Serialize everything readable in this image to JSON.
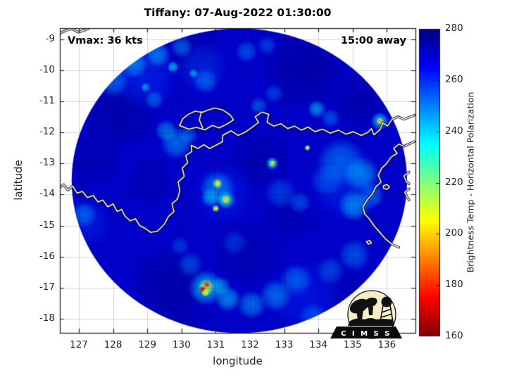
{
  "title": "Tiffany: 07-Aug-2022 01:30:00",
  "overlays": {
    "vmax_label": "Vmax: 36 kts",
    "timing_label": "15:00 away"
  },
  "axes": {
    "xlabel": "longitude",
    "ylabel": "latitude",
    "xticks": [
      127,
      128,
      129,
      130,
      131,
      132,
      133,
      134,
      135,
      136
    ],
    "yticks": [
      -9,
      -10,
      -11,
      -12,
      -13,
      -14,
      -15,
      -16,
      -17,
      -18
    ],
    "xlim": [
      126.44,
      136.83
    ],
    "ylim": [
      -18.45,
      -8.65
    ]
  },
  "colorbar": {
    "label": "Brightness Temp - Horizontal Polarization",
    "ticks": [
      280,
      260,
      240,
      220,
      200,
      180,
      160
    ],
    "min": 160,
    "max": 280,
    "colormap": "jet (280 K dark blue at top, 160 K dark red at bottom)"
  },
  "logo": {
    "text": "C I M S S"
  },
  "chart_data": {
    "type": "heatmap",
    "storm_name": "Tiffany",
    "timestamp": "07-Aug-2022 01:30:00",
    "vmax_kts": 36,
    "time_to_closest_approach": "15:00 away",
    "field": "Brightness Temp - Horizontal Polarization",
    "units": "K",
    "background_temp_K": 271.5,
    "swath_disc": {
      "center_lon": 131.69,
      "center_lat": -13.56,
      "radius_deg": 4.9
    },
    "hotspots": [
      {
        "lon": 131.3,
        "lat": -14.17,
        "temp_K": 196
      },
      {
        "lon": 131.05,
        "lat": -13.65,
        "temp_K": 204
      },
      {
        "lon": 131.0,
        "lat": -14.45,
        "temp_K": 206
      },
      {
        "lon": 132.65,
        "lat": -13.0,
        "temp_K": 200
      },
      {
        "lon": 130.74,
        "lat": -16.9,
        "temp_K": 178
      },
      {
        "lon": 130.62,
        "lat": -17.06,
        "temp_K": 170
      },
      {
        "lon": 135.8,
        "lat": -11.64,
        "temp_K": 192
      },
      {
        "lon": 133.68,
        "lat": -12.5,
        "temp_K": 208
      }
    ],
    "patches": [
      [
        133.6,
        -10.0,
        1.3,
        278,
        0.55
      ],
      [
        135.2,
        -11.0,
        0.9,
        277.5,
        0.5
      ],
      [
        128.2,
        -11.4,
        1.2,
        277.5,
        0.5
      ],
      [
        127.4,
        -12.9,
        0.9,
        277,
        0.45
      ],
      [
        129.1,
        -13.6,
        0.8,
        276.5,
        0.45
      ],
      [
        132.3,
        -12.9,
        1.0,
        277,
        0.5
      ],
      [
        129.6,
        -16.9,
        1.2,
        277.5,
        0.55
      ],
      [
        131.9,
        -15.9,
        1.1,
        276.5,
        0.45
      ],
      [
        134.7,
        -17.1,
        0.9,
        276,
        0.4
      ],
      [
        130.3,
        -9.4,
        0.9,
        277,
        0.45
      ],
      [
        126.9,
        -15.9,
        0.9,
        276.5,
        0.45
      ],
      [
        133.1,
        -14.7,
        0.9,
        276,
        0.4
      ],
      [
        136.0,
        -10.3,
        0.8,
        277,
        0.4
      ],
      [
        130.0,
        -18.0,
        1.0,
        276,
        0.4
      ],
      [
        128.9,
        -10.1,
        1.1,
        258,
        0.45
      ],
      [
        130.6,
        -9.9,
        0.8,
        256,
        0.4
      ],
      [
        134.8,
        -13.6,
        1.2,
        258,
        0.45
      ],
      [
        133.6,
        -17.3,
        1.2,
        260,
        0.4
      ],
      [
        127.2,
        -14.9,
        0.8,
        258,
        0.4
      ],
      [
        131.2,
        -14.0,
        1.0,
        259,
        0.35
      ],
      [
        128.0,
        -10.35,
        0.5,
        248,
        0.6
      ],
      [
        128.6,
        -9.8,
        0.45,
        245,
        0.65
      ],
      [
        129.3,
        -9.5,
        0.4,
        244,
        0.6
      ],
      [
        130.0,
        -9.25,
        0.35,
        247,
        0.55
      ],
      [
        130.7,
        -10.35,
        0.4,
        248,
        0.55
      ],
      [
        129.2,
        -10.95,
        0.3,
        247,
        0.55
      ],
      [
        129.75,
        -9.9,
        0.18,
        238,
        0.7
      ],
      [
        130.35,
        -10.1,
        0.15,
        240,
        0.65
      ],
      [
        128.95,
        -10.55,
        0.15,
        239,
        0.65
      ],
      [
        129.85,
        -12.35,
        0.5,
        245,
        0.6
      ],
      [
        129.55,
        -11.95,
        0.35,
        243,
        0.55
      ],
      [
        130.2,
        -12.1,
        0.3,
        247,
        0.5
      ],
      [
        131.9,
        -9.4,
        0.35,
        248,
        0.5
      ],
      [
        132.5,
        -9.2,
        0.3,
        250,
        0.45
      ],
      [
        133.95,
        -11.25,
        0.28,
        242,
        0.65
      ],
      [
        134.35,
        -11.55,
        0.3,
        248,
        0.5
      ],
      [
        132.25,
        -11.15,
        0.28,
        247,
        0.5
      ],
      [
        132.7,
        -10.75,
        0.3,
        250,
        0.45
      ],
      [
        134.65,
        -12.95,
        0.75,
        247,
        0.55
      ],
      [
        135.25,
        -13.35,
        0.55,
        243,
        0.6
      ],
      [
        135.05,
        -14.35,
        0.5,
        241,
        0.6
      ],
      [
        135.55,
        -14.05,
        0.4,
        246,
        0.5
      ],
      [
        134.25,
        -13.55,
        0.5,
        250,
        0.45
      ],
      [
        135.05,
        -15.95,
        0.5,
        247,
        0.5
      ],
      [
        134.35,
        -16.45,
        0.45,
        249,
        0.45
      ],
      [
        133.35,
        -16.75,
        0.5,
        246,
        0.5
      ],
      [
        132.75,
        -17.25,
        0.5,
        244,
        0.55
      ],
      [
        132.05,
        -17.55,
        0.45,
        243,
        0.55
      ],
      [
        131.35,
        -17.35,
        0.4,
        240,
        0.6
      ],
      [
        130.25,
        -16.25,
        0.4,
        248,
        0.45
      ],
      [
        129.95,
        -15.65,
        0.3,
        250,
        0.4
      ],
      [
        127.15,
        -14.65,
        0.4,
        246,
        0.5
      ],
      [
        126.75,
        -15.25,
        0.35,
        244,
        0.5
      ],
      [
        126.5,
        -13.35,
        0.2,
        234,
        0.65
      ],
      [
        126.55,
        -14.35,
        0.25,
        240,
        0.55
      ],
      [
        132.9,
        -13.95,
        0.5,
        250,
        0.45
      ],
      [
        133.45,
        -14.25,
        0.35,
        248,
        0.45
      ],
      [
        131.55,
        -15.55,
        0.4,
        252,
        0.4
      ],
      [
        133.85,
        -17.95,
        0.45,
        248,
        0.45
      ],
      [
        131.05,
        -13.8,
        0.55,
        243,
        0.55
      ],
      [
        131.05,
        -13.65,
        0.16,
        215,
        0.9
      ],
      [
        131.05,
        -13.65,
        0.07,
        204,
        1
      ],
      [
        131.3,
        -14.17,
        0.28,
        232,
        0.75
      ],
      [
        131.3,
        -14.17,
        0.13,
        210,
        0.95
      ],
      [
        131.3,
        -14.17,
        0.06,
        196,
        1
      ],
      [
        131.0,
        -14.45,
        0.12,
        214,
        0.9
      ],
      [
        131.0,
        -14.45,
        0.05,
        206,
        1
      ],
      [
        130.85,
        -14.1,
        0.3,
        240,
        0.55
      ],
      [
        132.65,
        -13.0,
        0.2,
        235,
        0.75
      ],
      [
        132.65,
        -13.0,
        0.1,
        210,
        0.9
      ],
      [
        132.68,
        -12.98,
        0.05,
        200,
        1
      ],
      [
        130.72,
        -17.0,
        0.55,
        238,
        0.65
      ],
      [
        130.72,
        -16.98,
        0.26,
        216,
        0.85
      ],
      [
        130.74,
        -16.9,
        0.1,
        178,
        1
      ],
      [
        130.62,
        -17.06,
        0.11,
        170,
        1
      ],
      [
        130.7,
        -17.16,
        0.13,
        208,
        0.9
      ],
      [
        131.15,
        -16.95,
        0.3,
        238,
        0.5
      ],
      [
        135.8,
        -11.64,
        0.28,
        238,
        0.7
      ],
      [
        135.8,
        -11.64,
        0.12,
        210,
        0.9
      ],
      [
        135.8,
        -11.64,
        0.05,
        192,
        1
      ],
      [
        133.68,
        -12.5,
        0.1,
        222,
        0.85
      ],
      [
        133.68,
        -12.5,
        0.05,
        208,
        1
      ],
      [
        126.48,
        -13.9,
        0.12,
        228,
        0.8
      ]
    ],
    "coastlines": [
      {
        "name": "timor-coast",
        "points": [
          [
            126.44,
            -8.82
          ],
          [
            126.62,
            -8.72
          ],
          [
            126.8,
            -8.67
          ],
          [
            126.98,
            -8.78
          ],
          [
            127.15,
            -8.72
          ],
          [
            127.3,
            -8.65
          ]
        ]
      },
      {
        "name": "australia-north-coast",
        "points": [
          [
            126.44,
            -13.78
          ],
          [
            126.56,
            -13.68
          ],
          [
            126.68,
            -13.86
          ],
          [
            126.82,
            -13.73
          ],
          [
            126.95,
            -13.96
          ],
          [
            127.1,
            -13.9
          ],
          [
            127.25,
            -14.1
          ],
          [
            127.42,
            -14.03
          ],
          [
            127.56,
            -14.24
          ],
          [
            127.7,
            -14.18
          ],
          [
            127.85,
            -14.4
          ],
          [
            128.0,
            -14.3
          ],
          [
            128.12,
            -14.55
          ],
          [
            128.25,
            -14.48
          ],
          [
            128.35,
            -14.7
          ],
          [
            128.5,
            -14.85
          ],
          [
            128.65,
            -14.78
          ],
          [
            128.78,
            -15.0
          ],
          [
            128.95,
            -15.1
          ],
          [
            129.1,
            -15.22
          ],
          [
            129.3,
            -15.18
          ],
          [
            129.5,
            -14.95
          ],
          [
            129.62,
            -14.7
          ],
          [
            129.78,
            -14.55
          ],
          [
            129.72,
            -14.3
          ],
          [
            129.88,
            -14.15
          ],
          [
            129.95,
            -13.88
          ],
          [
            129.9,
            -13.6
          ],
          [
            130.08,
            -13.42
          ],
          [
            130.02,
            -13.15
          ],
          [
            130.18,
            -12.98
          ],
          [
            130.12,
            -12.75
          ],
          [
            130.3,
            -12.62
          ],
          [
            130.28,
            -12.42
          ],
          [
            130.48,
            -12.52
          ],
          [
            130.65,
            -12.4
          ],
          [
            130.82,
            -12.52
          ],
          [
            131.0,
            -12.42
          ],
          [
            131.2,
            -12.3
          ],
          [
            131.2,
            -12.1
          ],
          [
            131.45,
            -11.95
          ],
          [
            131.65,
            -12.1
          ],
          [
            131.85,
            -12.0
          ],
          [
            132.05,
            -11.85
          ],
          [
            132.25,
            -11.68
          ],
          [
            132.15,
            -11.5
          ],
          [
            132.35,
            -11.35
          ],
          [
            132.55,
            -11.42
          ],
          [
            132.5,
            -11.68
          ],
          [
            132.7,
            -11.8
          ],
          [
            132.9,
            -11.72
          ],
          [
            133.1,
            -11.88
          ],
          [
            133.3,
            -11.8
          ],
          [
            133.5,
            -11.93
          ],
          [
            133.7,
            -11.83
          ],
          [
            133.9,
            -11.98
          ],
          [
            134.12,
            -11.9
          ],
          [
            134.35,
            -12.03
          ],
          [
            134.58,
            -11.93
          ],
          [
            134.8,
            -12.06
          ],
          [
            135.02,
            -11.98
          ],
          [
            135.25,
            -12.1
          ],
          [
            135.45,
            -12.0
          ],
          [
            135.55,
            -11.88
          ],
          [
            135.62,
            -12.08
          ],
          [
            135.8,
            -11.92
          ],
          [
            135.88,
            -11.7
          ],
          [
            136.02,
            -11.8
          ],
          [
            136.15,
            -11.58
          ],
          [
            136.33,
            -11.5
          ],
          [
            136.5,
            -11.58
          ],
          [
            136.8,
            -11.45
          ]
        ]
      },
      {
        "name": "gulf-of-carpentaria-coast",
        "points": [
          [
            136.8,
            -12.3
          ],
          [
            136.5,
            -12.45
          ],
          [
            136.35,
            -12.38
          ],
          [
            136.2,
            -12.52
          ],
          [
            136.3,
            -12.68
          ],
          [
            136.12,
            -12.8
          ],
          [
            136.0,
            -13.0
          ],
          [
            135.85,
            -13.15
          ],
          [
            135.75,
            -13.38
          ],
          [
            135.83,
            -13.6
          ],
          [
            135.68,
            -13.75
          ],
          [
            135.58,
            -13.98
          ],
          [
            135.44,
            -14.15
          ],
          [
            135.3,
            -14.4
          ],
          [
            135.35,
            -14.62
          ],
          [
            135.5,
            -14.8
          ],
          [
            135.62,
            -15.0
          ],
          [
            135.78,
            -15.2
          ],
          [
            135.95,
            -15.42
          ],
          [
            136.15,
            -15.6
          ],
          [
            136.35,
            -15.7
          ]
        ]
      },
      {
        "name": "tiwi-islands",
        "points": [
          [
            129.94,
            -11.78
          ],
          [
            130.04,
            -11.56
          ],
          [
            130.2,
            -11.42
          ],
          [
            130.4,
            -11.32
          ],
          [
            130.6,
            -11.36
          ],
          [
            130.78,
            -11.28
          ],
          [
            130.98,
            -11.22
          ],
          [
            131.2,
            -11.28
          ],
          [
            131.42,
            -11.44
          ],
          [
            131.52,
            -11.6
          ],
          [
            131.32,
            -11.74
          ],
          [
            131.1,
            -11.86
          ],
          [
            130.9,
            -11.78
          ],
          [
            130.68,
            -11.92
          ],
          [
            130.44,
            -11.84
          ],
          [
            130.2,
            -11.9
          ],
          [
            129.94,
            -11.78
          ]
        ]
      },
      {
        "name": "apsley-strait",
        "points": [
          [
            130.58,
            -11.34
          ],
          [
            130.52,
            -11.6
          ],
          [
            130.62,
            -11.86
          ]
        ]
      },
      {
        "name": "groote-eylandt-1",
        "points": [
          [
            136.65,
            -13.28
          ],
          [
            136.5,
            -13.4
          ],
          [
            136.56,
            -13.58
          ],
          [
            136.65,
            -13.66
          ]
        ]
      },
      {
        "name": "groote-eylandt-2",
        "points": [
          [
            136.65,
            -13.82
          ],
          [
            136.52,
            -13.93
          ],
          [
            136.6,
            -14.1
          ],
          [
            136.65,
            -14.18
          ]
        ]
      },
      {
        "name": "small-island-1",
        "points": [
          [
            135.9,
            -13.72
          ],
          [
            136.0,
            -13.68
          ],
          [
            136.08,
            -13.76
          ],
          [
            136.0,
            -13.84
          ],
          [
            135.9,
            -13.8
          ],
          [
            135.9,
            -13.72
          ]
        ]
      },
      {
        "name": "small-island-2",
        "points": [
          [
            135.4,
            -15.52
          ],
          [
            135.5,
            -15.48
          ],
          [
            135.55,
            -15.56
          ],
          [
            135.46,
            -15.6
          ],
          [
            135.4,
            -15.52
          ]
        ]
      }
    ]
  }
}
